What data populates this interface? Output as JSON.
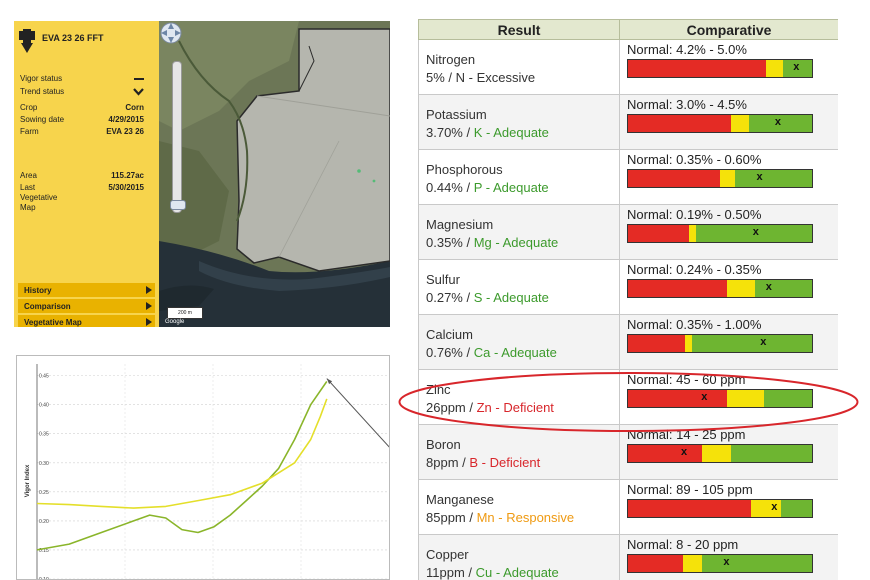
{
  "map_panel": {
    "field_title": "EVA 23 26 FFT",
    "details": [
      {
        "label": "Vigor status",
        "value": ""
      },
      {
        "label": "Trend status",
        "value": ""
      },
      {
        "label": "Crop",
        "value": "Corn"
      },
      {
        "label": "Sowing date",
        "value": "4/29/2015"
      },
      {
        "label": "Farm",
        "value": "EVA 23 26"
      }
    ],
    "area_label": "Area",
    "area_value": "115.27ac",
    "last_map_label": "Last\nVegetative\nMap",
    "last_map_value": "5/30/2015",
    "nav": [
      "History",
      "Comparison",
      "Vegetative Map"
    ],
    "scale_text": "200 m",
    "map_credit": "Google"
  },
  "vigor_chart_texts": {
    "ylabel": "Vigor Index",
    "yticks": [
      "0.45",
      "0.40",
      "0.35",
      "0.30",
      "0.25",
      "0.20",
      "0.15",
      "0.10"
    ]
  },
  "chart_data": {
    "type": "line",
    "ylabel": "Vigor Index",
    "ylim": [
      0.1,
      0.47
    ],
    "xlim": [
      0,
      100
    ],
    "yticks": [
      0.45,
      0.4,
      0.35,
      0.3,
      0.25,
      0.2,
      0.15,
      0.1
    ],
    "grid": true,
    "series": [
      {
        "color": "#8ab52a",
        "x": [
          0,
          10,
          20,
          30,
          35,
          40,
          45,
          50,
          55,
          60,
          65,
          70,
          75,
          80,
          85,
          90
        ],
        "y": [
          0.15,
          0.16,
          0.18,
          0.2,
          0.21,
          0.205,
          0.185,
          0.18,
          0.19,
          0.21,
          0.235,
          0.26,
          0.29,
          0.34,
          0.4,
          0.44
        ]
      },
      {
        "color": "#e4df2a",
        "x": [
          0,
          10,
          20,
          30,
          40,
          50,
          60,
          70,
          80,
          85,
          88,
          90
        ],
        "y": [
          0.23,
          0.228,
          0.225,
          0.222,
          0.225,
          0.235,
          0.245,
          0.265,
          0.3,
          0.34,
          0.38,
          0.41
        ]
      }
    ],
    "annotations": [
      {
        "type": "arrow",
        "x_from": 127,
        "y_from": 0.22,
        "x_to": 90,
        "y_to": 0.445
      }
    ]
  },
  "table": {
    "headers": [
      "Result",
      "Comparative"
    ],
    "rows": [
      {
        "nutrient": "Nitrogen",
        "concentration": "5%",
        "symbol": "N",
        "status": "Excessive",
        "status_class": "excessive",
        "normal": "Normal: 4.2% - 5.0%",
        "bar": [
          0.75,
          0.84
        ],
        "marker": 0.92
      },
      {
        "nutrient": "Potassium",
        "concentration": "3.70%",
        "symbol": "K",
        "status": "Adequate",
        "status_class": "adequate",
        "normal": "Normal: 3.0% - 4.5%",
        "bar": [
          0.56,
          0.66
        ],
        "marker": 0.82
      },
      {
        "nutrient": "Phosphorous",
        "concentration": "0.44%",
        "symbol": "P",
        "status": "Adequate",
        "status_class": "adequate",
        "normal": "Normal: 0.35% - 0.60%",
        "bar": [
          0.5,
          0.58
        ],
        "marker": 0.72
      },
      {
        "nutrient": "Magnesium",
        "concentration": "0.35%",
        "symbol": "Mg",
        "status": "Adequate",
        "status_class": "adequate",
        "normal": "Normal: 0.19% - 0.50%",
        "bar": [
          0.33,
          0.37
        ],
        "marker": 0.7
      },
      {
        "nutrient": "Sulfur",
        "concentration": "0.27%",
        "symbol": "S",
        "status": "Adequate",
        "status_class": "adequate",
        "normal": "Normal: 0.24% - 0.35%",
        "bar": [
          0.54,
          0.69
        ],
        "marker": 0.77
      },
      {
        "nutrient": "Calcium",
        "concentration": "0.76%",
        "symbol": "Ca",
        "status": "Adequate",
        "status_class": "adequate",
        "normal": "Normal: 0.35% - 1.00%",
        "bar": [
          0.31,
          0.35
        ],
        "marker": 0.74
      },
      {
        "nutrient": "Zinc",
        "concentration": "26ppm",
        "symbol": "Zn",
        "status": "Deficient",
        "status_class": "deficient",
        "normal": "Normal: 45 - 60 ppm",
        "bar": [
          0.54,
          0.74
        ],
        "marker": 0.42
      },
      {
        "nutrient": "Boron",
        "concentration": "8ppm",
        "symbol": "B",
        "status": "Deficient",
        "status_class": "deficient",
        "normal": "Normal: 14 - 25 ppm",
        "bar": [
          0.4,
          0.56
        ],
        "marker": 0.31
      },
      {
        "nutrient": "Manganese",
        "concentration": "85ppm",
        "symbol": "Mn",
        "status": "Responsive",
        "status_class": "responsive",
        "normal": "Normal: 89 - 105 ppm",
        "bar": [
          0.67,
          0.83
        ],
        "marker": 0.8
      },
      {
        "nutrient": "Copper",
        "concentration": "11ppm",
        "symbol": "Cu",
        "status": "Adequate",
        "status_class": "adequate",
        "normal": "Normal: 8 - 20 ppm",
        "bar": [
          0.3,
          0.4
        ],
        "marker": 0.54
      }
    ]
  },
  "colors": {
    "bar_red": "#e42b25",
    "bar_yellow": "#f5e20a",
    "bar_green": "#6eb531",
    "highlight": "#d8262b",
    "panel": "#f7d44c"
  },
  "highlighted_row": "Zinc"
}
